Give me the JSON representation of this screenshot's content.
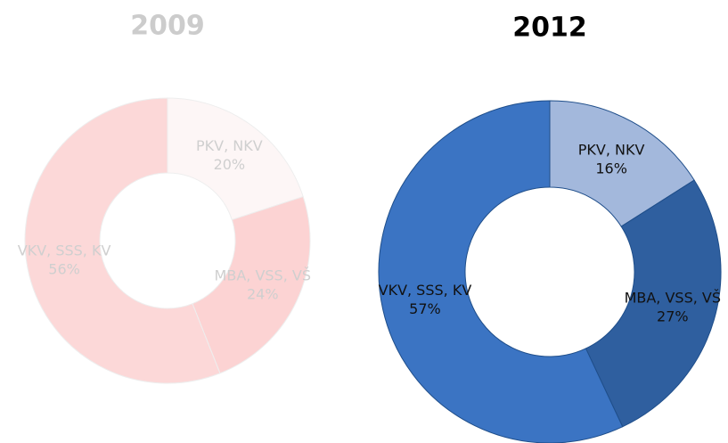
{
  "chart_data": [
    {
      "type": "donut",
      "title": "2009",
      "categories": [
        "PKV, NKV",
        "MBA, VSS, VŠ",
        "VKV, SSS, KV"
      ],
      "values": [
        20,
        24,
        56
      ],
      "value_labels": [
        "20%",
        "24%",
        "56%"
      ],
      "colors": [
        "#fdf6f6",
        "#fcd3d3",
        "#fcd8d8"
      ],
      "title_color": "#cccccc",
      "label_color": "#cfcfcf"
    },
    {
      "type": "donut",
      "title": "2012",
      "categories": [
        "PKV, NKV",
        "MBA, VSS, VŠ",
        "VKV, SSS, KV"
      ],
      "values": [
        16,
        27,
        57
      ],
      "value_labels": [
        "16%",
        "27%",
        "57%"
      ],
      "colors": [
        "#a3b8dc",
        "#2f5f9f",
        "#3b74c3"
      ],
      "title_color": "#000000",
      "label_color": "#111111"
    }
  ]
}
